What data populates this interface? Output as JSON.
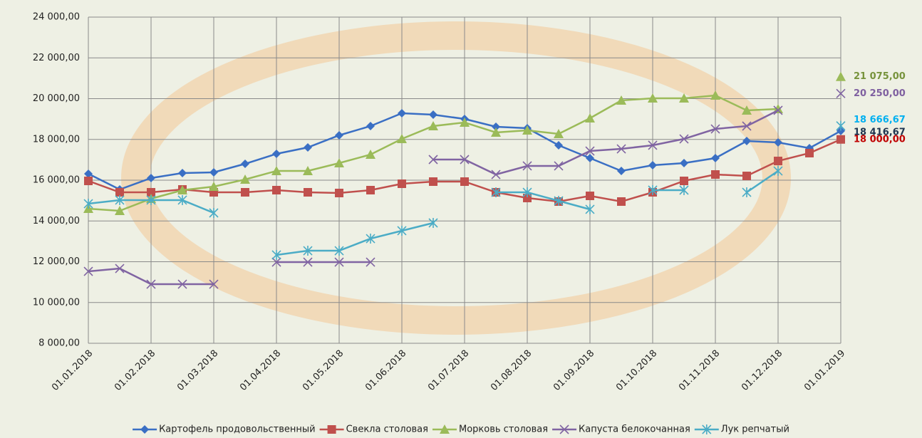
{
  "chart_data": {
    "type": "line",
    "categories": [
      "01.01.2018",
      null,
      "01.02.2018",
      null,
      "01.03.2018",
      null,
      "01.04.2018",
      null,
      "01.05.2018",
      null,
      "01.06.2018",
      null,
      "01.07.2018",
      null,
      "01.08.2018",
      null,
      "01.09.2018",
      null,
      "01.10.2018",
      null,
      "01.11.2018",
      null,
      "01.12.2018",
      null,
      "01.01.2019"
    ],
    "ylim": [
      8000,
      24000
    ],
    "yticks": [
      {
        "value": 8000,
        "label": "8 000,00"
      },
      {
        "value": 10000,
        "label": "10 000,00"
      },
      {
        "value": 12000,
        "label": "12 000,00"
      },
      {
        "value": 14000,
        "label": "14 000,00"
      },
      {
        "value": 16000,
        "label": "16 000,00"
      },
      {
        "value": 18000,
        "label": "18 000,00"
      },
      {
        "value": 20000,
        "label": "20 000,00"
      },
      {
        "value": 22000,
        "label": "22 000,00"
      },
      {
        "value": 24000,
        "label": "24 000,00"
      }
    ],
    "grid": true,
    "legend": "bottom",
    "series": [
      {
        "name": "Картофель продовольственный",
        "color": "#3a6fc4",
        "marker": "diamond",
        "label_color": "#1f3550",
        "values": [
          16314,
          15546,
          16105,
          16349,
          16384,
          16803,
          17293,
          17607,
          18201,
          18655,
          19284,
          19214,
          19004,
          18620,
          18550,
          17712,
          17083,
          16454,
          16734,
          16838,
          17083,
          17921,
          17851,
          17572,
          18416.67
        ],
        "value_labels": [
          null,
          null,
          null,
          null,
          null,
          null,
          null,
          null,
          null,
          null,
          null,
          null,
          null,
          null,
          null,
          null,
          null,
          null,
          null,
          null,
          null,
          null,
          null,
          null,
          "18 416,67"
        ]
      },
      {
        "name": "Свекла столовая",
        "color": "#c0504d",
        "marker": "square",
        "label_color": "#c00000",
        "values": [
          15965,
          15406,
          15406,
          15546,
          15406,
          15406,
          15511,
          15406,
          15371,
          15511,
          15825,
          15930,
          15930,
          15406,
          15127,
          14952,
          15231,
          14952,
          15406,
          15965,
          16279,
          16209,
          16943,
          17328,
          18000
        ],
        "value_labels": [
          null,
          null,
          null,
          null,
          null,
          null,
          null,
          null,
          null,
          null,
          null,
          null,
          null,
          null,
          null,
          null,
          null,
          null,
          null,
          null,
          null,
          null,
          null,
          null,
          "18 000,00"
        ]
      },
      {
        "name": "Морковь столовая",
        "color": "#9bbb59",
        "marker": "triangle",
        "label_color": "#77933c",
        "values": [
          14602,
          14498,
          15092,
          15511,
          15685,
          16035,
          16454,
          16454,
          16838,
          17258,
          18026,
          18655,
          18830,
          18341,
          18445,
          18271,
          19039,
          19913,
          20017,
          20017,
          20157,
          19424,
          19494,
          null,
          21075
        ],
        "value_labels": [
          null,
          null,
          null,
          null,
          null,
          null,
          null,
          null,
          null,
          null,
          null,
          null,
          null,
          null,
          null,
          null,
          null,
          null,
          null,
          null,
          null,
          null,
          null,
          null,
          "21 075,00"
        ]
      },
      {
        "name": "Капуста белокочанная",
        "color": "#8064a2",
        "marker": "x",
        "label_color": "#7f60a0",
        "values": [
          11528,
          11668,
          10899,
          10899,
          10899,
          null,
          11982,
          11982,
          11982,
          11982,
          null,
          17013,
          17013,
          16279,
          16699,
          16699,
          17432,
          17537,
          17712,
          18026,
          18515,
          18655,
          19424,
          null,
          20250
        ],
        "value_labels": [
          null,
          null,
          null,
          null,
          null,
          null,
          null,
          null,
          null,
          null,
          null,
          null,
          null,
          null,
          null,
          null,
          null,
          null,
          null,
          null,
          null,
          null,
          null,
          null,
          "20 250,00"
        ]
      },
      {
        "name": "Лук репчатый",
        "color": "#4bacc6",
        "marker": "star",
        "label_color": "#00b0f0",
        "values": [
          14847,
          15022,
          15022,
          15022,
          14393,
          null,
          12332,
          12541,
          12541,
          13135,
          13520,
          13904,
          null,
          15406,
          15406,
          14987,
          14568,
          null,
          15511,
          15511,
          null,
          15406,
          16454,
          null,
          18666.67
        ],
        "value_labels": [
          null,
          null,
          null,
          null,
          null,
          null,
          null,
          null,
          null,
          null,
          null,
          null,
          null,
          null,
          null,
          null,
          null,
          null,
          null,
          null,
          null,
          null,
          null,
          null,
          "18 666,67"
        ]
      }
    ]
  }
}
